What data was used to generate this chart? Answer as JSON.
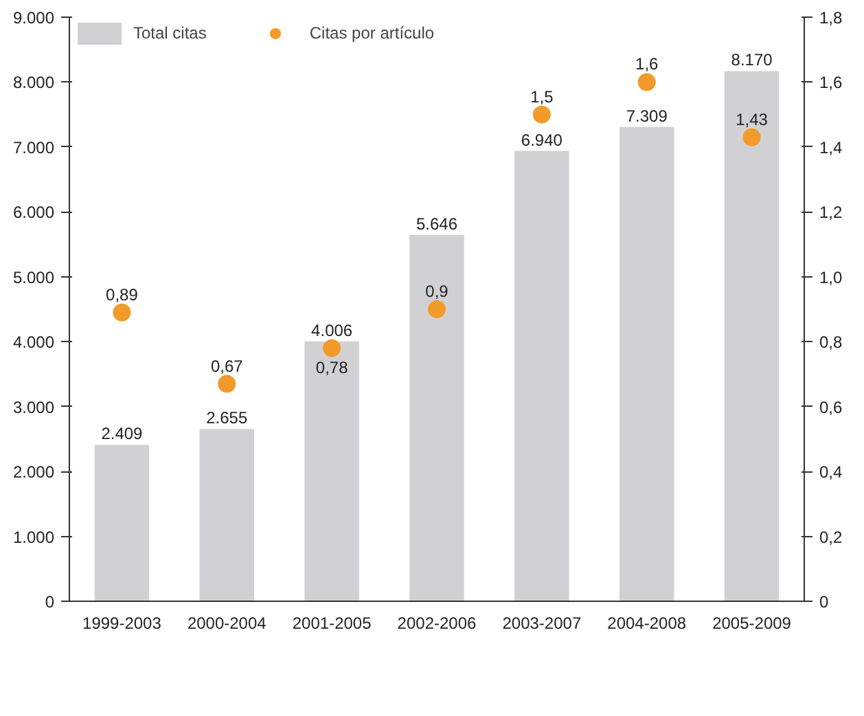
{
  "chart_data": {
    "type": "bar",
    "categories": [
      "1999-2003",
      "2000-2004",
      "2001-2005",
      "2002-2006",
      "2003-2007",
      "2004-2008",
      "2005-2009"
    ],
    "series": [
      {
        "name": "Total citas",
        "color": "#d1d1d3",
        "values": [
          2409,
          2655,
          4006,
          5646,
          6940,
          7309,
          8170
        ],
        "value_labels": [
          "2.409",
          "2.655",
          "4.006",
          "5.646",
          "6.940",
          "7.309",
          "8.170"
        ]
      },
      {
        "name": "Citas por artículo",
        "type": "scatter",
        "axis": "y2",
        "color": "#f39a2b",
        "values": [
          0.89,
          0.67,
          0.78,
          0.9,
          1.5,
          1.6,
          1.43
        ],
        "value_labels": [
          "0,89",
          "0,67",
          "0,78",
          "0,9",
          "1,5",
          "1,6",
          "1,43"
        ]
      }
    ],
    "ylim": [
      0,
      9000
    ],
    "yticks": [
      0,
      {
        "value": 1000,
        "label": "1.000"
      },
      {
        "value": 2000,
        "label": "2.000"
      },
      {
        "value": 3000,
        "label": "3.000"
      },
      {
        "value": 4000,
        "label": "4.000"
      },
      {
        "value": 5000,
        "label": "5.000"
      },
      {
        "value": 6000,
        "label": "6.000"
      },
      {
        "value": 7000,
        "label": "7.000"
      },
      {
        "value": 8000,
        "label": "8.000"
      },
      {
        "value": 9000,
        "label": "9.000"
      }
    ],
    "y2lim": [
      0,
      1.8
    ],
    "y2ticks": [
      0,
      {
        "value": 0.2,
        "label": "0,2"
      },
      {
        "value": 0.4,
        "label": "0,4"
      },
      {
        "value": 0.6,
        "label": "0,6"
      },
      {
        "value": 0.8,
        "label": "0,8"
      },
      {
        "value": 1.0,
        "label": "1,0"
      },
      {
        "value": 1.2,
        "label": "1,2"
      },
      {
        "value": 1.4,
        "label": "1,4"
      },
      {
        "value": 1.6,
        "label": "1,6"
      },
      {
        "value": 1.8,
        "label": "1,8"
      }
    ],
    "marker": "circle",
    "grid": false,
    "legend": "top left"
  }
}
